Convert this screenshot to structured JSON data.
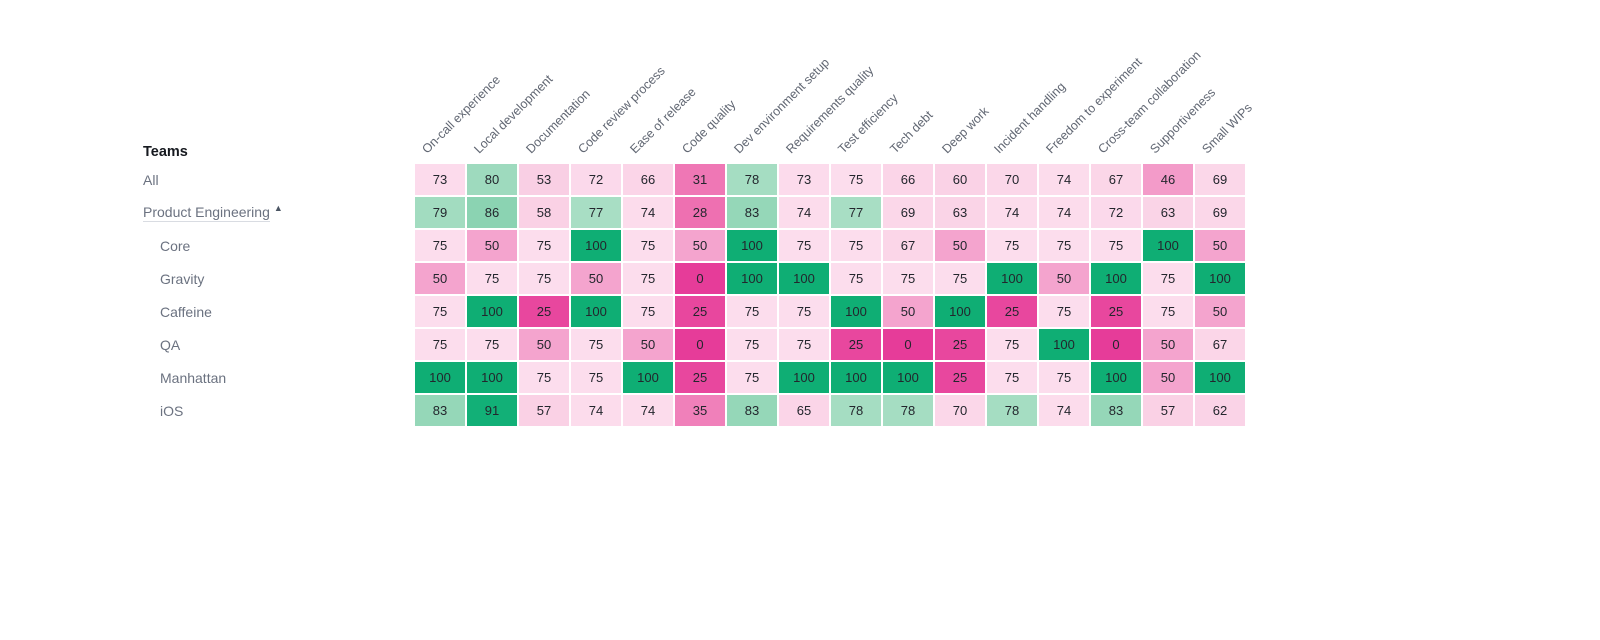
{
  "chart_data": {
    "type": "heatmap",
    "row_header": "Teams",
    "columns": [
      "On-call experience",
      "Local development",
      "Documentation",
      "Code review process",
      "Ease of release",
      "Code quality",
      "Dev environment setup",
      "Requirements quality",
      "Test efficiency",
      "Tech debt",
      "Deep work",
      "Incident handling",
      "Freedom to experiment",
      "Cross-team collaboration",
      "Supportiveness",
      "Small WIPs"
    ],
    "rows": [
      {
        "team": "All",
        "indent": 0,
        "collapsible": false,
        "values": [
          73,
          80,
          53,
          72,
          66,
          31,
          78,
          73,
          75,
          66,
          60,
          70,
          74,
          67,
          46,
          69
        ]
      },
      {
        "team": "Product Engineering",
        "indent": 0,
        "collapsible": true,
        "values": [
          79,
          86,
          58,
          77,
          74,
          28,
          83,
          74,
          77,
          69,
          63,
          74,
          74,
          72,
          63,
          69
        ]
      },
      {
        "team": "Core",
        "indent": 1,
        "collapsible": false,
        "values": [
          75,
          50,
          75,
          100,
          75,
          50,
          100,
          75,
          75,
          67,
          50,
          75,
          75,
          75,
          100,
          50
        ]
      },
      {
        "team": "Gravity",
        "indent": 1,
        "collapsible": false,
        "values": [
          50,
          75,
          75,
          50,
          75,
          0,
          100,
          100,
          75,
          75,
          75,
          100,
          50,
          100,
          75,
          100
        ]
      },
      {
        "team": "Caffeine",
        "indent": 1,
        "collapsible": false,
        "values": [
          75,
          100,
          25,
          100,
          75,
          25,
          75,
          75,
          100,
          50,
          100,
          25,
          75,
          25,
          75,
          50
        ]
      },
      {
        "team": "QA",
        "indent": 1,
        "collapsible": false,
        "values": [
          75,
          75,
          50,
          75,
          50,
          0,
          75,
          75,
          25,
          0,
          25,
          75,
          100,
          0,
          50,
          67
        ]
      },
      {
        "team": "Manhattan",
        "indent": 1,
        "collapsible": false,
        "values": [
          100,
          100,
          75,
          75,
          100,
          25,
          75,
          100,
          100,
          100,
          25,
          75,
          75,
          100,
          50,
          100
        ]
      },
      {
        "team": "iOS",
        "indent": 1,
        "collapsible": false,
        "values": [
          83,
          91,
          57,
          74,
          74,
          35,
          83,
          65,
          78,
          78,
          70,
          78,
          74,
          83,
          57,
          62
        ]
      }
    ],
    "value_range": [
      0,
      100
    ],
    "legend_position": "none",
    "grid": false,
    "collapse_indicator": "▲",
    "colors": {
      "cell_text": "#23262d",
      "gap": "#ffffff",
      "scale_anchors": [
        [
          0,
          "#e63c99"
        ],
        [
          25,
          "#e8479e"
        ],
        [
          26,
          "#ed6cae"
        ],
        [
          35,
          "#f080ba"
        ],
        [
          46,
          "#f39bc9"
        ],
        [
          50,
          "#f4a4ce"
        ],
        [
          52,
          "#f5a8d0"
        ],
        [
          53,
          "#f9cfe4"
        ],
        [
          60,
          "#fad2e6"
        ],
        [
          70,
          "#fbd7e9"
        ],
        [
          76,
          "#fcdeee"
        ],
        [
          77,
          "#a8dec4"
        ],
        [
          86,
          "#8bd3b2"
        ],
        [
          90,
          "#85d1ae"
        ],
        [
          91,
          "#12b077"
        ],
        [
          100,
          "#0fae74"
        ]
      ]
    }
  }
}
